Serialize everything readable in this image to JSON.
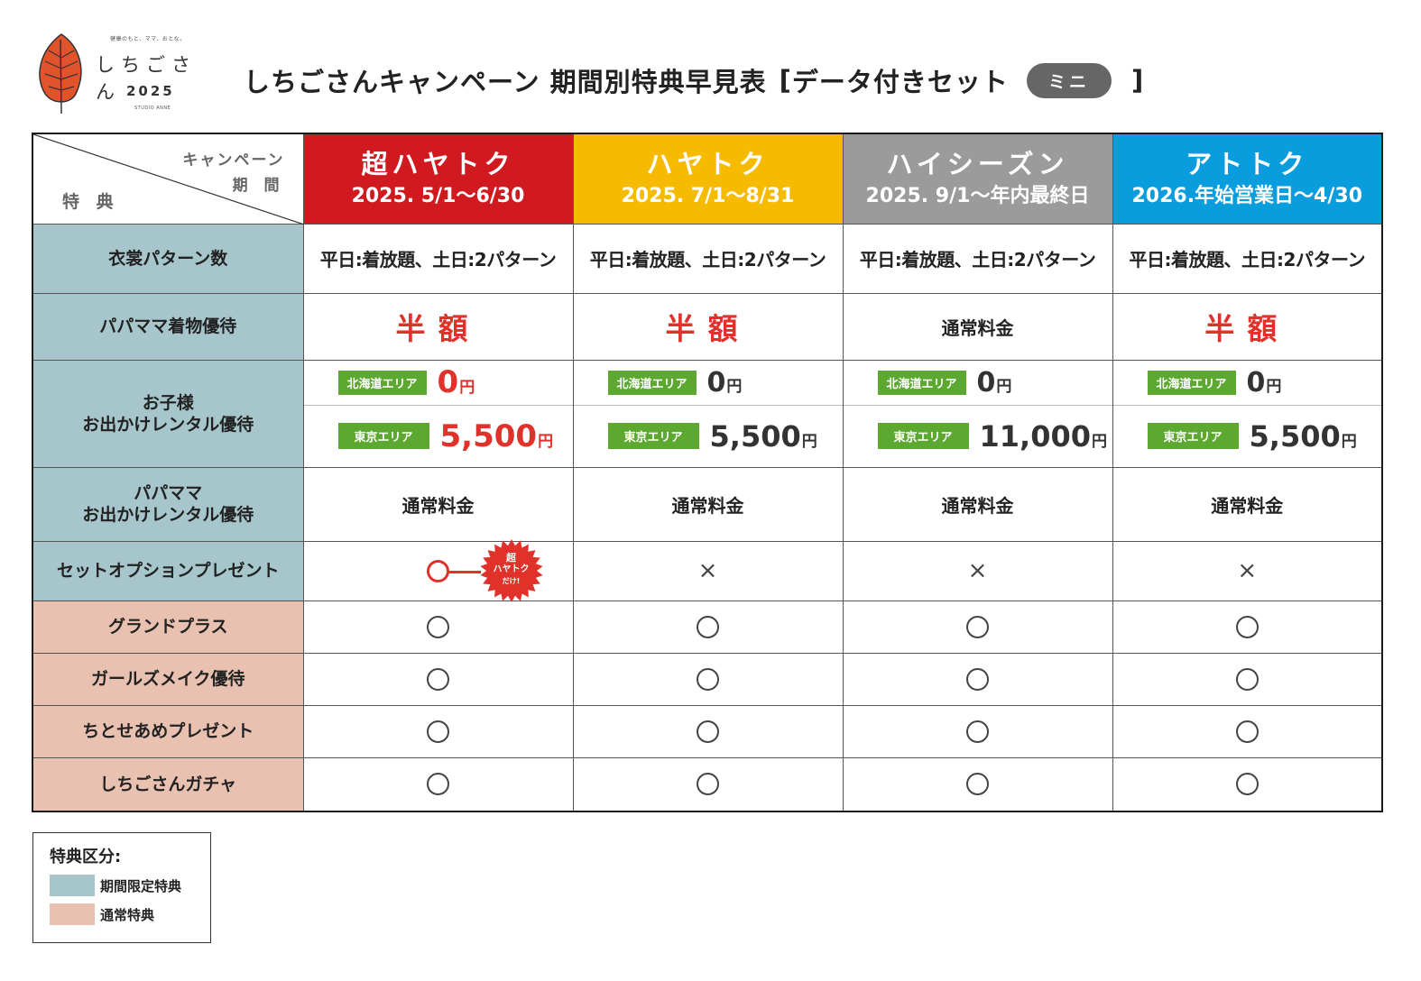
{
  "logo": {
    "tagline": "健康のもと、ママ、おとな。",
    "name": "しちごさん",
    "year": "2025",
    "studio": "STUDIO ANNE",
    "leaf_color": "#e0532b"
  },
  "title": {
    "text": "しちごさんキャンペーン 期間別特典早見表",
    "bracket_open": "[",
    "subtitle": "データ付きセット",
    "badge": "ミニ",
    "bracket_close": "]"
  },
  "table": {
    "header": {
      "campaign_label": "キャンペーン",
      "period_label": "期 間",
      "benefit_label": "特 典"
    },
    "campaigns": [
      {
        "name": "超ハヤトク",
        "period": "2025. 5/1～6/30",
        "color": "#d11a1f"
      },
      {
        "name": "ハヤトク",
        "period": "2025. 7/1～8/31",
        "color": "#f6bb00"
      },
      {
        "name": "ハイシーズン",
        "period": "2025. 9/1～年内最終日",
        "color": "#9b9b9b"
      },
      {
        "name": "アトトク",
        "period": "2026.年始営業日～4/30",
        "color": "#0a9ddd"
      }
    ],
    "rows": {
      "costume": {
        "label": "衣裳パターン数",
        "values": [
          "平日:着放題、土日:2パターン",
          "平日:着放題、土日:2パターン",
          "平日:着放題、土日:2パターン",
          "平日:着放題、土日:2パターン"
        ]
      },
      "papamama_kimono": {
        "label": "パパママ着物優待",
        "values": [
          "半額",
          "半額",
          "通常料金",
          "半額"
        ]
      },
      "kids_rental": {
        "label_line1": "お子様",
        "label_line2": "お出かけレンタル優待",
        "hokkaido_tag": "北海道エリア",
        "tokyo_tag": "東京エリア",
        "yen": "円",
        "hokkaido_prices": [
          "0",
          "0",
          "0",
          "0"
        ],
        "tokyo_prices": [
          "5,500",
          "5,500",
          "11,000",
          "5,500"
        ]
      },
      "papamama_rental": {
        "label_line1": "パパママ",
        "label_line2": "お出かけレンタル優待",
        "values": [
          "通常料金",
          "通常料金",
          "通常料金",
          "通常料金"
        ]
      },
      "set_option": {
        "label": "セットオプションプレゼント",
        "values": [
          "circle",
          "×",
          "×",
          "×"
        ],
        "burst_line1": "超",
        "burst_line2": "ハヤトク",
        "burst_line3": "だけ!"
      },
      "grand_plus": {
        "label": "グランドプラス"
      },
      "girls_makeup": {
        "label": "ガールズメイク優待"
      },
      "chitose_ame": {
        "label": "ちとせあめプレゼント"
      },
      "gacha": {
        "label": "しちごさんガチャ"
      }
    }
  },
  "legend": {
    "title": "特典区分:",
    "limited": {
      "label": "期間限定特典",
      "color": "#a6c6cc"
    },
    "normal": {
      "label": "通常特典",
      "color": "#e8c1b0"
    }
  }
}
